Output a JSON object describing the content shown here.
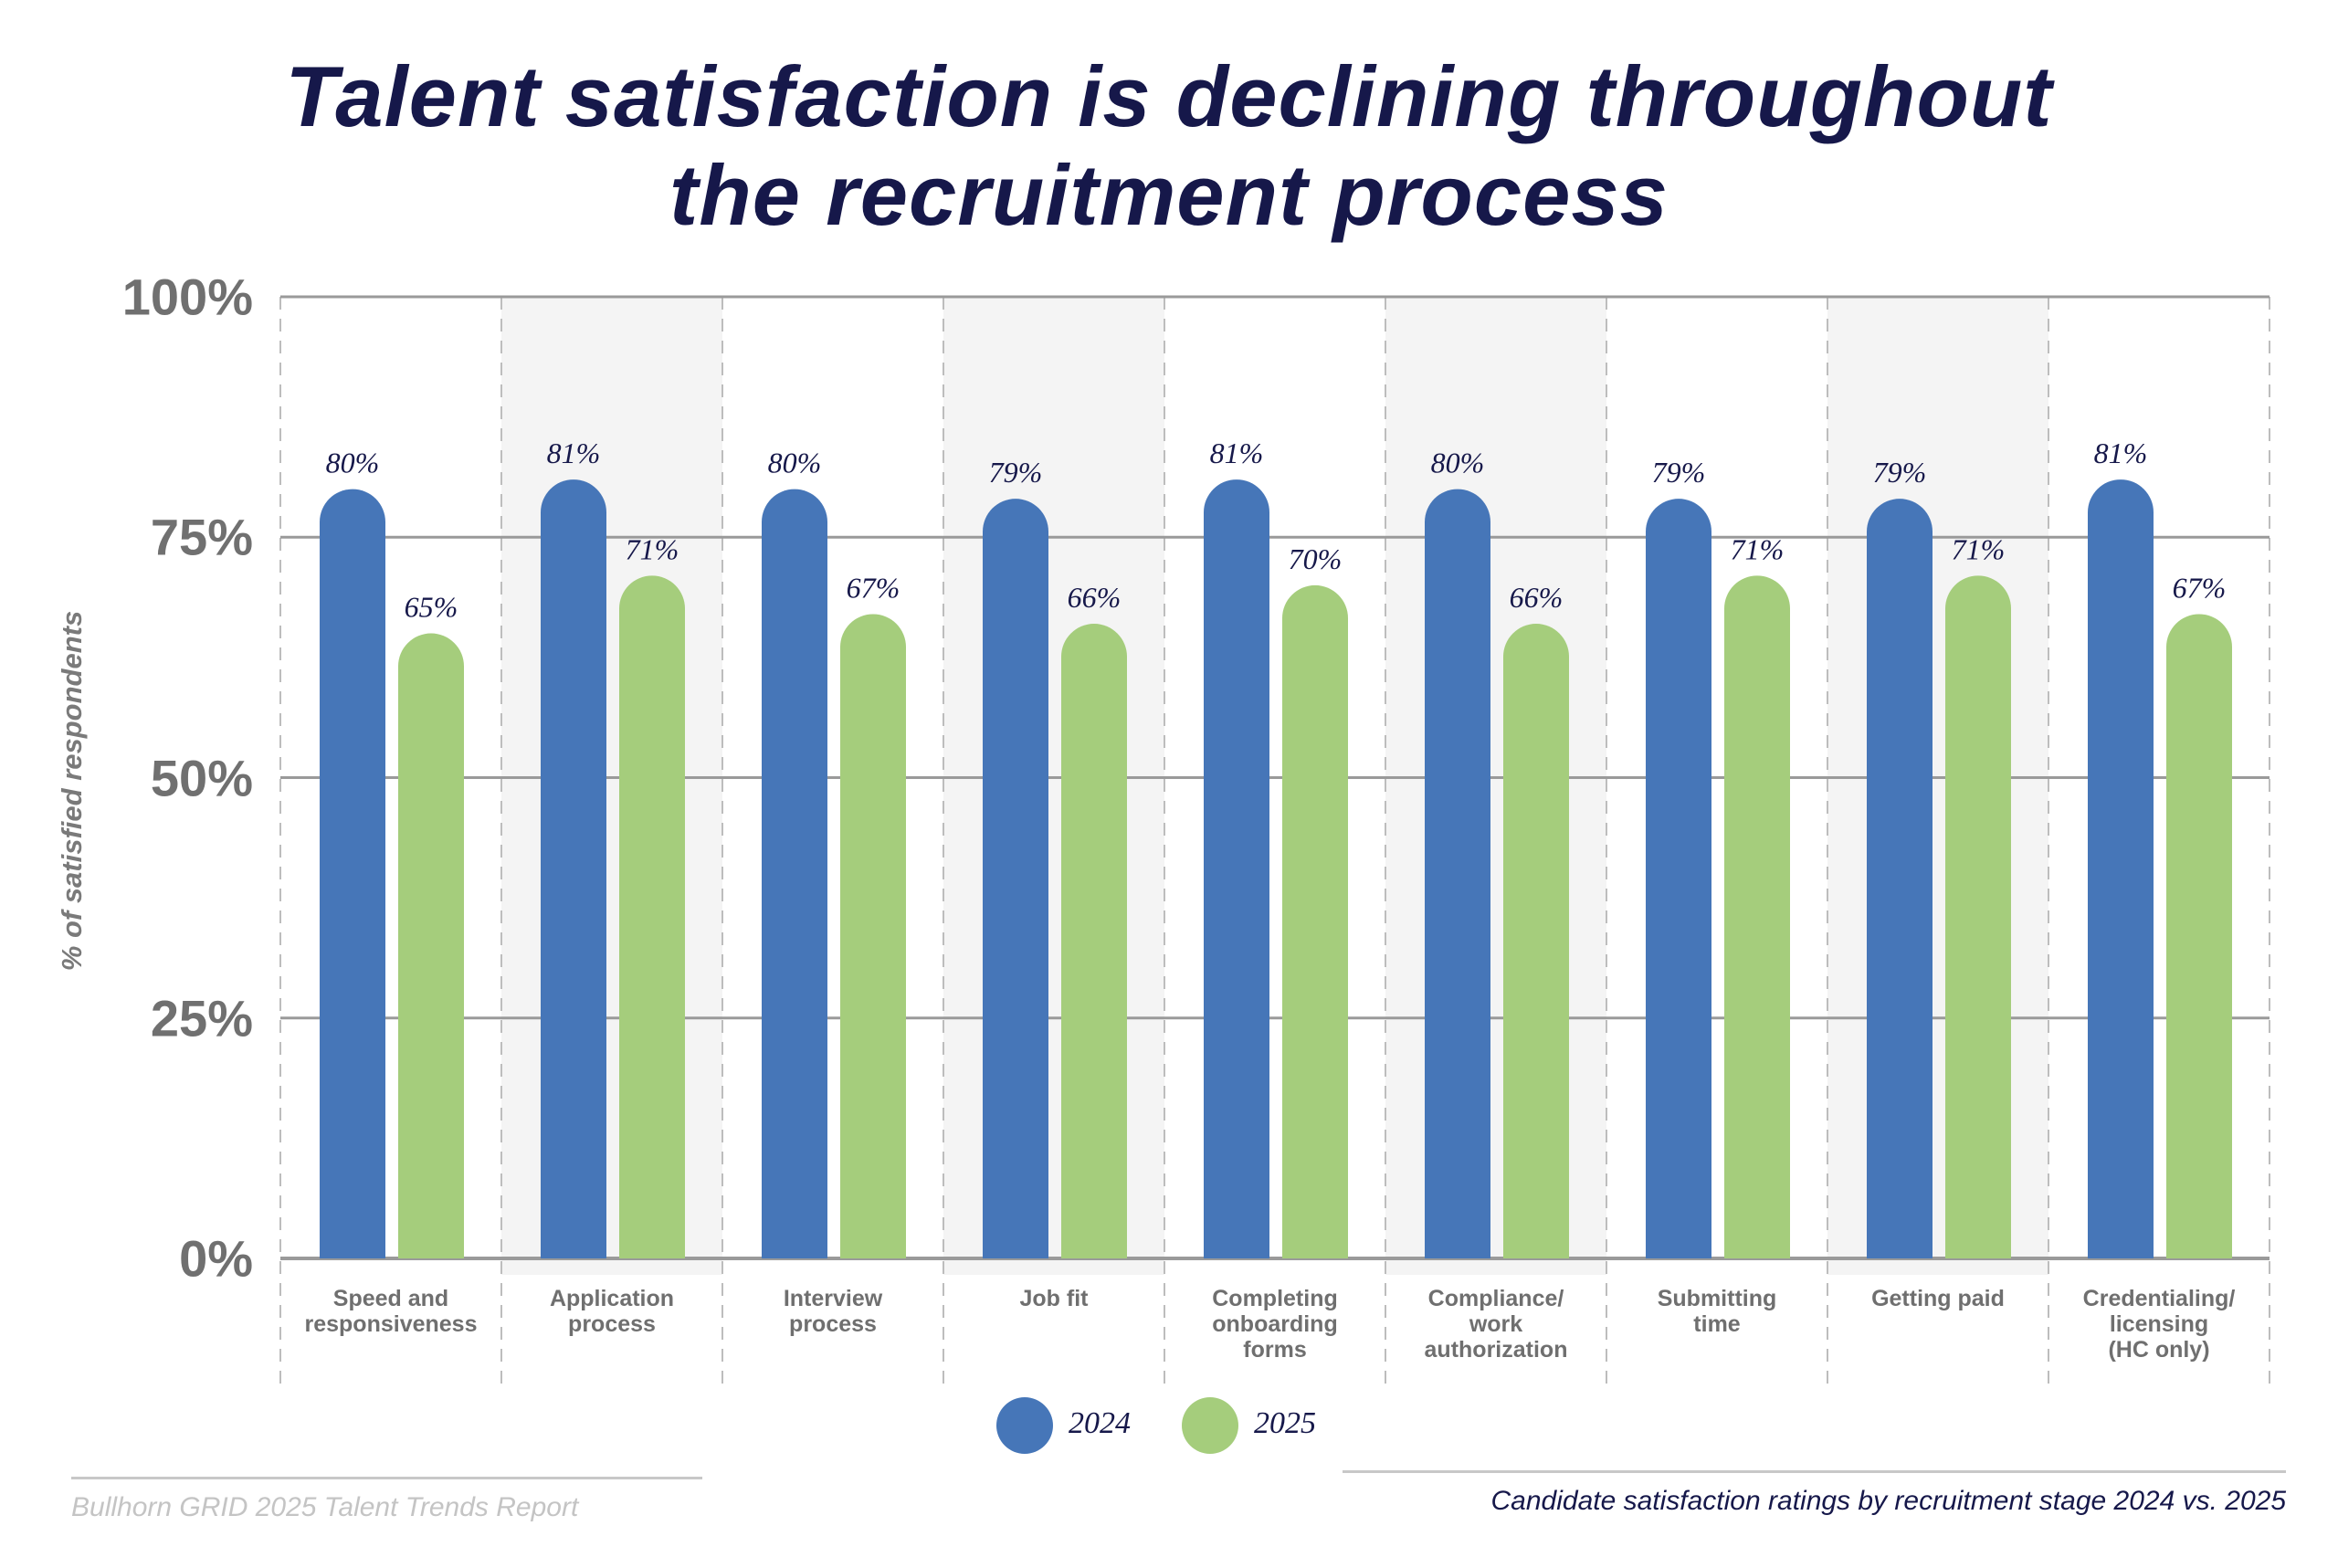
{
  "title_lines": [
    "Talent satisfaction is declining throughout",
    "the recruitment process"
  ],
  "footer": {
    "source": "Bullhorn GRID 2025 Talent Trends Report",
    "caption": "Candidate satisfaction ratings by recruitment stage 2024 vs. 2025"
  },
  "colors": {
    "2024": "#4676b8",
    "2025": "#a5cd7c",
    "title": "#16184a",
    "shade": "#f4f4f4"
  },
  "chart_data": {
    "type": "bar",
    "ylabel": "% of satisfied respondents",
    "ylim": [
      0,
      100
    ],
    "yticks": [
      "0%",
      "25%",
      "50%",
      "75%",
      "100%"
    ],
    "grid": true,
    "legend": "bottom-center",
    "categories": [
      [
        "Speed and",
        "responsiveness"
      ],
      [
        "Application",
        "process"
      ],
      [
        "Interview",
        "process"
      ],
      [
        "Job fit"
      ],
      [
        "Completing",
        "onboarding",
        "forms"
      ],
      [
        "Compliance/",
        "work",
        "authorization"
      ],
      [
        "Submitting",
        "time"
      ],
      [
        "Getting paid"
      ],
      [
        "Credentialing/",
        "licensing",
        "(HC only)"
      ]
    ],
    "series": [
      {
        "name": "2024",
        "values": [
          80,
          81,
          80,
          79,
          81,
          80,
          79,
          79,
          81
        ],
        "labels": [
          "80%",
          "81%",
          "80%",
          "79%",
          "81%",
          "80%",
          "79%",
          "79%",
          "81%"
        ]
      },
      {
        "name": "2025",
        "values": [
          65,
          71,
          67,
          66,
          70,
          66,
          71,
          71,
          67
        ],
        "labels": [
          "65%",
          "71%",
          "67%",
          "66%",
          "70%",
          "66%",
          "71%",
          "71%",
          "67%"
        ]
      }
    ]
  }
}
